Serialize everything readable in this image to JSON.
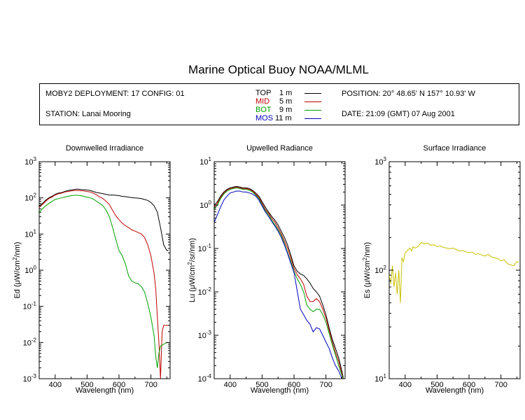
{
  "header": {
    "title": "Marine Optical Buoy NOAA/MLML",
    "deployment": "MOBY2 DEPLOYMENT: 17 CONFIG: 01",
    "station": "STATION: Lanai Mooring",
    "position": "POSITION: 20° 48.65' N   157° 10.93' W",
    "date": "DATE: 21:09 (GMT) 07 Aug 2001"
  },
  "legend": [
    {
      "name": "TOP",
      "depth": "1  m",
      "color": "#000000"
    },
    {
      "name": "MID",
      "depth": "5  m",
      "color": "#c00000"
    },
    {
      "name": "BOT",
      "depth": "9  m",
      "color": "#00a000"
    },
    {
      "name": "MOS",
      "depth": "11  m",
      "color": "#0000c0"
    }
  ],
  "chart_data": [
    {
      "type": "line",
      "title": "Downwelled Irradiance",
      "xlabel": "Wavelength (nm)",
      "ylabel_main": "Ed  (",
      "ylabel_unit": "μW/cm",
      "ylabel_tail": "/nm)",
      "yscale": "log",
      "xlim": [
        350,
        760
      ],
      "ylim": [
        0.001,
        1000
      ],
      "xticks": [
        "400",
        "500",
        "600",
        "700"
      ],
      "series": [
        {
          "color": "#000000",
          "x": [
            350,
            360,
            370,
            380,
            390,
            400,
            410,
            420,
            430,
            440,
            450,
            460,
            470,
            480,
            490,
            500,
            510,
            520,
            530,
            540,
            550,
            560,
            570,
            580,
            590,
            600,
            610,
            620,
            630,
            640,
            650,
            660,
            670,
            680,
            690,
            700,
            710,
            720,
            730,
            740,
            750,
            755
          ],
          "y": [
            60,
            70,
            85,
            100,
            110,
            125,
            135,
            140,
            150,
            160,
            165,
            170,
            175,
            170,
            168,
            165,
            160,
            150,
            140,
            135,
            130,
            125,
            120,
            120,
            118,
            115,
            110,
            108,
            105,
            102,
            100,
            98,
            95,
            90,
            85,
            75,
            60,
            40,
            15,
            5,
            3.5,
            3.5
          ]
        },
        {
          "color": "#c00000",
          "x": [
            350,
            360,
            370,
            380,
            390,
            400,
            410,
            420,
            430,
            440,
            450,
            460,
            470,
            480,
            490,
            500,
            510,
            520,
            530,
            540,
            550,
            560,
            570,
            580,
            590,
            600,
            610,
            620,
            630,
            640,
            650,
            660,
            670,
            680,
            690,
            700,
            710,
            715,
            720,
            725,
            730,
            735,
            740,
            750,
            755
          ],
          "y": [
            55,
            65,
            80,
            95,
            105,
            120,
            130,
            135,
            145,
            150,
            155,
            160,
            160,
            158,
            155,
            150,
            145,
            135,
            120,
            105,
            95,
            80,
            65,
            45,
            32,
            25,
            20,
            17,
            15,
            13,
            12,
            11,
            10,
            8,
            5,
            2.5,
            0.8,
            0.3,
            0.05,
            0.01,
            0.001,
            0.02,
            0.03,
            0.03,
            0.03
          ]
        },
        {
          "color": "#00a000",
          "x": [
            350,
            360,
            370,
            380,
            390,
            400,
            410,
            420,
            430,
            440,
            450,
            460,
            470,
            480,
            490,
            500,
            510,
            520,
            530,
            540,
            550,
            560,
            570,
            580,
            590,
            600,
            610,
            620,
            630,
            640,
            650,
            660,
            670,
            680,
            690,
            700,
            710,
            715,
            720,
            725,
            730,
            740,
            750,
            755
          ],
          "y": [
            40,
            50,
            60,
            70,
            80,
            90,
            95,
            100,
            105,
            110,
            115,
            118,
            118,
            115,
            110,
            105,
            100,
            92,
            80,
            70,
            60,
            45,
            30,
            15,
            7,
            3.5,
            2.5,
            1.5,
            0.7,
            0.5,
            0.45,
            0.42,
            0.35,
            0.25,
            0.12,
            0.05,
            0.015,
            0.004,
            0.002,
            0.005,
            0.008,
            0.009,
            0.01,
            0.01
          ]
        }
      ]
    },
    {
      "type": "line",
      "title": "Upwelled Radiance",
      "xlabel": "Wavelength (nm)",
      "ylabel_main": "Lu  (",
      "ylabel_unit": "μW/cm",
      "ylabel_tail": "/sr/nm)",
      "yscale": "log",
      "xlim": [
        350,
        760
      ],
      "ylim": [
        0.0001,
        10
      ],
      "xticks": [
        "400",
        "500",
        "600",
        "700"
      ],
      "series": [
        {
          "color": "#000000",
          "x": [
            350,
            360,
            370,
            380,
            390,
            400,
            410,
            420,
            430,
            440,
            450,
            460,
            470,
            480,
            490,
            500,
            510,
            520,
            530,
            540,
            550,
            560,
            570,
            580,
            590,
            600,
            610,
            620,
            630,
            640,
            650,
            660,
            670,
            680,
            690,
            700,
            710,
            720,
            730,
            740,
            750,
            755
          ],
          "y": [
            1.0,
            1.2,
            1.6,
            2.0,
            2.3,
            2.5,
            2.6,
            2.7,
            2.6,
            2.5,
            2.5,
            2.4,
            2.2,
            1.9,
            1.6,
            1.2,
            0.9,
            0.7,
            0.55,
            0.45,
            0.35,
            0.25,
            0.18,
            0.12,
            0.07,
            0.04,
            0.03,
            0.026,
            0.024,
            0.02,
            0.016,
            0.012,
            0.01,
            0.008,
            0.005,
            0.003,
            0.0015,
            0.0008,
            0.0005,
            0.0003,
            0.00015,
            0.0001
          ]
        },
        {
          "color": "#c00000",
          "x": [
            350,
            360,
            370,
            380,
            390,
            400,
            410,
            420,
            430,
            440,
            450,
            460,
            470,
            480,
            490,
            500,
            510,
            520,
            530,
            540,
            550,
            560,
            570,
            580,
            590,
            600,
            610,
            620,
            630,
            640,
            650,
            660,
            670,
            680,
            690,
            700,
            710,
            720,
            730,
            740,
            750,
            755
          ],
          "y": [
            0.9,
            1.1,
            1.5,
            1.9,
            2.2,
            2.4,
            2.5,
            2.6,
            2.5,
            2.4,
            2.4,
            2.3,
            2.1,
            1.8,
            1.5,
            1.1,
            0.8,
            0.65,
            0.5,
            0.4,
            0.3,
            0.22,
            0.15,
            0.1,
            0.06,
            0.035,
            0.025,
            0.02,
            0.015,
            0.008,
            0.006,
            0.006,
            0.007,
            0.006,
            0.004,
            0.0025,
            0.0013,
            0.0007,
            0.0004,
            0.00025,
            0.00013,
            0.0001
          ]
        },
        {
          "color": "#00a000",
          "x": [
            350,
            360,
            370,
            380,
            390,
            400,
            410,
            420,
            430,
            440,
            450,
            460,
            470,
            480,
            490,
            500,
            510,
            520,
            530,
            540,
            550,
            560,
            570,
            580,
            590,
            600,
            610,
            620,
            630,
            640,
            650,
            660,
            670,
            680,
            690,
            700,
            710,
            720,
            730,
            740,
            750,
            755
          ],
          "y": [
            0.8,
            1.0,
            1.4,
            1.8,
            2.1,
            2.3,
            2.4,
            2.5,
            2.4,
            2.3,
            2.3,
            2.2,
            2.0,
            1.7,
            1.4,
            1.0,
            0.75,
            0.6,
            0.45,
            0.35,
            0.27,
            0.2,
            0.13,
            0.08,
            0.05,
            0.03,
            0.02,
            0.015,
            0.01,
            0.005,
            0.004,
            0.0035,
            0.004,
            0.004,
            0.003,
            0.002,
            0.0011,
            0.0006,
            0.00035,
            0.0002,
            0.00012,
            0.0001
          ]
        },
        {
          "color": "#0000c0",
          "x": [
            350,
            360,
            370,
            380,
            390,
            400,
            410,
            420,
            430,
            440,
            450,
            460,
            470,
            480,
            490,
            500,
            510,
            520,
            530,
            540,
            550,
            560,
            570,
            580,
            590,
            600,
            620,
            630,
            640,
            650,
            660,
            670,
            680,
            690,
            700,
            710,
            720,
            730,
            740,
            750,
            755
          ],
          "y": [
            0.4,
            0.6,
            0.9,
            1.3,
            1.6,
            1.9,
            2.0,
            2.1,
            2.1,
            2.0,
            2.0,
            1.9,
            1.8,
            1.6,
            1.3,
            0.95,
            0.7,
            0.55,
            0.42,
            0.33,
            0.25,
            0.18,
            0.12,
            0.075,
            0.045,
            0.028,
            0.004,
            0.003,
            0.0022,
            0.0018,
            0.0012,
            0.0015,
            0.0014,
            0.001,
            0.0007,
            0.0005,
            0.0003,
            0.0002,
            0.00015,
            0.0001,
            0.0001
          ]
        }
      ]
    },
    {
      "type": "line",
      "title": "Surface Irradiance",
      "xlabel": "Wavelength (nm)",
      "ylabel_main": "Es  (",
      "ylabel_unit": "μW/cm",
      "ylabel_tail": "/nm)",
      "yscale": "log",
      "xlim": [
        350,
        760
      ],
      "ylim": [
        10,
        1000
      ],
      "xticks": [
        "400",
        "500",
        "600",
        "700"
      ],
      "series": [
        {
          "color": "#c8c000",
          "x": [
            350,
            355,
            360,
            365,
            370,
            375,
            380,
            385,
            390,
            395,
            400,
            405,
            410,
            415,
            420,
            425,
            430,
            440,
            450,
            460,
            470,
            480,
            490,
            500,
            510,
            520,
            530,
            540,
            550,
            560,
            570,
            580,
            590,
            600,
            610,
            620,
            630,
            640,
            650,
            660,
            670,
            680,
            690,
            700,
            710,
            720,
            730,
            740,
            750,
            755
          ],
          "y": [
            90,
            75,
            110,
            70,
            95,
            60,
            100,
            50,
            130,
            120,
            145,
            150,
            155,
            160,
            150,
            165,
            160,
            165,
            180,
            175,
            178,
            170,
            172,
            165,
            168,
            162,
            160,
            158,
            160,
            155,
            150,
            152,
            148,
            145,
            147,
            140,
            142,
            138,
            135,
            140,
            132,
            130,
            128,
            122,
            125,
            115,
            112,
            110,
            120,
            118
          ]
        }
      ]
    }
  ]
}
